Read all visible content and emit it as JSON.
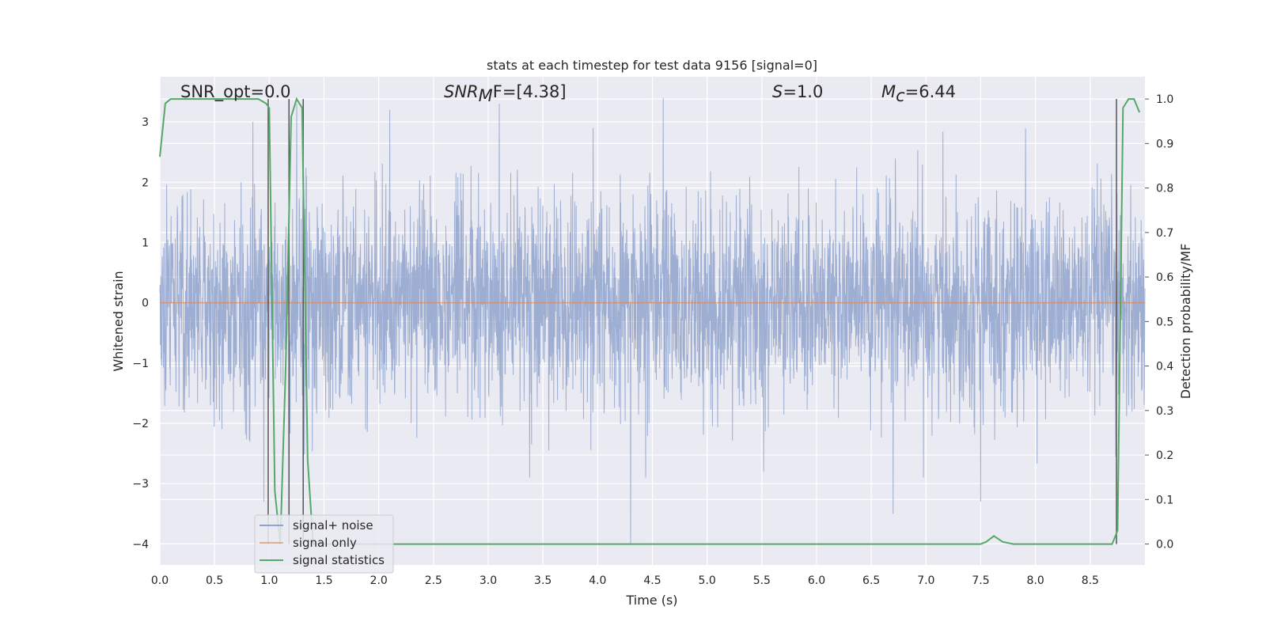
{
  "chart_data": {
    "type": "line",
    "title": "stats at each timestep for test data 9156 [signal=0]",
    "xlabel": "Time (s)",
    "ylabel": "Whitened strain",
    "y2label": "Detection probability/MF",
    "xlim": [
      0.0,
      9.0
    ],
    "ylim": [
      -4.35,
      3.75
    ],
    "y2lim": [
      -0.047,
      1.05
    ],
    "x_ticks": [
      "0.0",
      "0.5",
      "1.0",
      "1.5",
      "2.0",
      "2.5",
      "3.0",
      "3.5",
      "4.0",
      "4.5",
      "5.0",
      "5.5",
      "6.0",
      "6.5",
      "7.0",
      "7.5",
      "8.0",
      "8.5"
    ],
    "y_ticks": [
      "3",
      "2",
      "1",
      "0",
      "−1",
      "−2",
      "−3",
      "−4"
    ],
    "y2_ticks": [
      "1.0",
      "0.9",
      "0.8",
      "0.7",
      "0.6",
      "0.5",
      "0.4",
      "0.3",
      "0.2",
      "0.1",
      "0.0"
    ],
    "grid": true,
    "legend_position": "lower-left",
    "annotations": {
      "snr_opt": "SNR_opt=0.0",
      "snr_mf_sym": "SNR",
      "snr_mf_sub": "M",
      "snr_mf_rest": "F=[4.38]",
      "s_sym": "S",
      "s_rest": "=1.0",
      "mc_sym": "M",
      "mc_sub": "c",
      "mc_rest": "=6.44"
    },
    "series": [
      {
        "name": "signal+ noise",
        "axis": "left",
        "color": "#8fa3cc",
        "description_values": "dense whitened noise trace, roughly within -2.0 to 2.0 with spikes up to about 3.4 and down to -4.0 near t=4.3 s",
        "envelope_typical": [
          -1.8,
          1.9
        ],
        "spikes": [
          {
            "x": 0.85,
            "y": 3.0
          },
          {
            "x": 0.95,
            "y": -3.3
          },
          {
            "x": 1.25,
            "y": 3.3
          },
          {
            "x": 2.1,
            "y": 3.2
          },
          {
            "x": 3.1,
            "y": 3.3
          },
          {
            "x": 4.3,
            "y": -4.0
          },
          {
            "x": 4.6,
            "y": 3.4
          },
          {
            "x": 6.7,
            "y": -3.5
          },
          {
            "x": 7.5,
            "y": -3.3
          }
        ]
      },
      {
        "name": "signal only",
        "axis": "left",
        "color": "#dd8452",
        "x": [
          0.0,
          9.0
        ],
        "y": [
          0.0,
          0.0
        ]
      },
      {
        "name": "signal statistics",
        "axis": "right",
        "color": "#55a868",
        "x": [
          0.0,
          0.05,
          0.1,
          0.2,
          0.5,
          0.9,
          0.97,
          1.0,
          1.05,
          1.1,
          1.15,
          1.2,
          1.25,
          1.3,
          1.35,
          1.4,
          1.45,
          2.0,
          3.0,
          5.0,
          7.0,
          7.5,
          7.55,
          7.62,
          7.7,
          7.8,
          8.0,
          8.5,
          8.7,
          8.75,
          8.8,
          8.85,
          8.9,
          8.95
        ],
        "y": [
          0.87,
          0.99,
          1.0,
          1.0,
          1.0,
          1.0,
          0.99,
          0.98,
          0.12,
          0.0,
          0.4,
          0.96,
          1.0,
          0.98,
          0.19,
          0.0,
          0.0,
          0.0,
          0.0,
          0.0,
          0.0,
          0.0,
          0.005,
          0.018,
          0.005,
          0.0,
          0.0,
          0.0,
          0.0,
          0.03,
          0.98,
          1.0,
          1.0,
          0.97
        ]
      }
    ],
    "vertical_lines": [
      0.99,
      1.18,
      1.31,
      8.74
    ]
  },
  "legend": {
    "items": [
      "signal+ noise",
      "signal only",
      "signal statistics"
    ]
  },
  "colors": {
    "plot_bg": "#eaeaf2",
    "grid": "#ffffff",
    "vline": "#555555"
  }
}
